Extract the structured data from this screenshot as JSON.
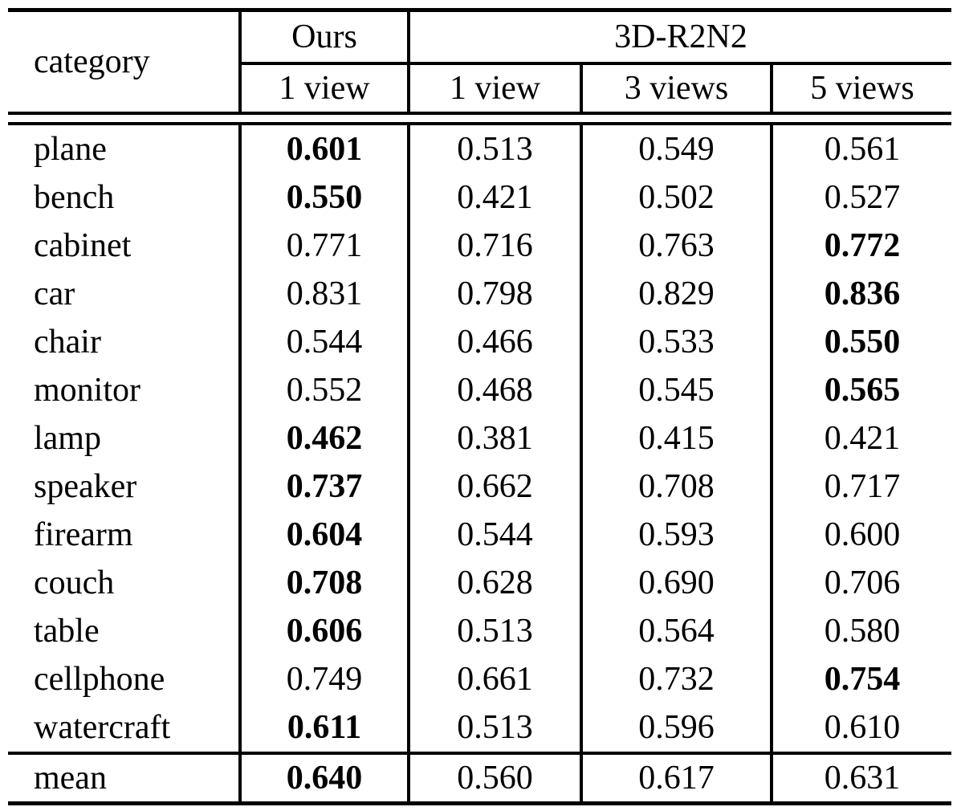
{
  "table": {
    "header": {
      "category_label": "category",
      "ours_label": "Ours",
      "r2n2_label": "3D-R2N2",
      "subheaders": [
        "1 view",
        "1 view",
        "3 views",
        "5 views"
      ]
    },
    "rows": [
      {
        "category": "plane",
        "cells": [
          {
            "text": "0.601",
            "bold": true
          },
          {
            "text": "0.513",
            "bold": false
          },
          {
            "text": "0.549",
            "bold": false
          },
          {
            "text": "0.561",
            "bold": false
          }
        ]
      },
      {
        "category": "bench",
        "cells": [
          {
            "text": "0.550",
            "bold": true
          },
          {
            "text": "0.421",
            "bold": false
          },
          {
            "text": "0.502",
            "bold": false
          },
          {
            "text": "0.527",
            "bold": false
          }
        ]
      },
      {
        "category": "cabinet",
        "cells": [
          {
            "text": "0.771",
            "bold": false
          },
          {
            "text": "0.716",
            "bold": false
          },
          {
            "text": "0.763",
            "bold": false
          },
          {
            "text": "0.772",
            "bold": true
          }
        ]
      },
      {
        "category": "car",
        "cells": [
          {
            "text": "0.831",
            "bold": false
          },
          {
            "text": "0.798",
            "bold": false
          },
          {
            "text": "0.829",
            "bold": false
          },
          {
            "text": "0.836",
            "bold": true
          }
        ]
      },
      {
        "category": "chair",
        "cells": [
          {
            "text": "0.544",
            "bold": false
          },
          {
            "text": "0.466",
            "bold": false
          },
          {
            "text": "0.533",
            "bold": false
          },
          {
            "text": "0.550",
            "bold": true
          }
        ]
      },
      {
        "category": "monitor",
        "cells": [
          {
            "text": "0.552",
            "bold": false
          },
          {
            "text": "0.468",
            "bold": false
          },
          {
            "text": "0.545",
            "bold": false
          },
          {
            "text": "0.565",
            "bold": true
          }
        ]
      },
      {
        "category": "lamp",
        "cells": [
          {
            "text": "0.462",
            "bold": true
          },
          {
            "text": "0.381",
            "bold": false
          },
          {
            "text": "0.415",
            "bold": false
          },
          {
            "text": "0.421",
            "bold": false
          }
        ]
      },
      {
        "category": "speaker",
        "cells": [
          {
            "text": "0.737",
            "bold": true
          },
          {
            "text": "0.662",
            "bold": false
          },
          {
            "text": "0.708",
            "bold": false
          },
          {
            "text": "0.717",
            "bold": false
          }
        ]
      },
      {
        "category": "firearm",
        "cells": [
          {
            "text": "0.604",
            "bold": true
          },
          {
            "text": "0.544",
            "bold": false
          },
          {
            "text": "0.593",
            "bold": false
          },
          {
            "text": "0.600",
            "bold": false
          }
        ]
      },
      {
        "category": "couch",
        "cells": [
          {
            "text": "0.708",
            "bold": true
          },
          {
            "text": "0.628",
            "bold": false
          },
          {
            "text": "0.690",
            "bold": false
          },
          {
            "text": "0.706",
            "bold": false
          }
        ]
      },
      {
        "category": "table",
        "cells": [
          {
            "text": "0.606",
            "bold": true
          },
          {
            "text": "0.513",
            "bold": false
          },
          {
            "text": "0.564",
            "bold": false
          },
          {
            "text": "0.580",
            "bold": false
          }
        ]
      },
      {
        "category": "cellphone",
        "cells": [
          {
            "text": "0.749",
            "bold": false
          },
          {
            "text": "0.661",
            "bold": false
          },
          {
            "text": "0.732",
            "bold": false
          },
          {
            "text": "0.754",
            "bold": true
          }
        ]
      },
      {
        "category": "watercraft",
        "cells": [
          {
            "text": "0.611",
            "bold": true
          },
          {
            "text": "0.513",
            "bold": false
          },
          {
            "text": "0.596",
            "bold": false
          },
          {
            "text": "0.610",
            "bold": false
          }
        ]
      }
    ],
    "mean_row": {
      "category": "mean",
      "cells": [
        {
          "text": "0.640",
          "bold": true
        },
        {
          "text": "0.560",
          "bold": false
        },
        {
          "text": "0.617",
          "bold": false
        },
        {
          "text": "0.631",
          "bold": false
        }
      ]
    },
    "colors": {
      "text": "#000000",
      "rule": "#000000",
      "background": "#ffffff"
    }
  },
  "chart_data": {
    "type": "table",
    "title": "",
    "columns": [
      "category",
      "Ours 1 view",
      "3D-R2N2 1 view",
      "3D-R2N2 3 views",
      "3D-R2N2 5 views"
    ],
    "rows": [
      [
        "plane",
        0.601,
        0.513,
        0.549,
        0.561
      ],
      [
        "bench",
        0.55,
        0.421,
        0.502,
        0.527
      ],
      [
        "cabinet",
        0.771,
        0.716,
        0.763,
        0.772
      ],
      [
        "car",
        0.831,
        0.798,
        0.829,
        0.836
      ],
      [
        "chair",
        0.544,
        0.466,
        0.533,
        0.55
      ],
      [
        "monitor",
        0.552,
        0.468,
        0.545,
        0.565
      ],
      [
        "lamp",
        0.462,
        0.381,
        0.415,
        0.421
      ],
      [
        "speaker",
        0.737,
        0.662,
        0.708,
        0.717
      ],
      [
        "firearm",
        0.604,
        0.544,
        0.593,
        0.6
      ],
      [
        "couch",
        0.708,
        0.628,
        0.69,
        0.706
      ],
      [
        "table",
        0.606,
        0.513,
        0.564,
        0.58
      ],
      [
        "cellphone",
        0.749,
        0.661,
        0.732,
        0.754
      ],
      [
        "watercraft",
        0.611,
        0.513,
        0.596,
        0.61
      ],
      [
        "mean",
        0.64,
        0.56,
        0.617,
        0.631
      ]
    ]
  }
}
